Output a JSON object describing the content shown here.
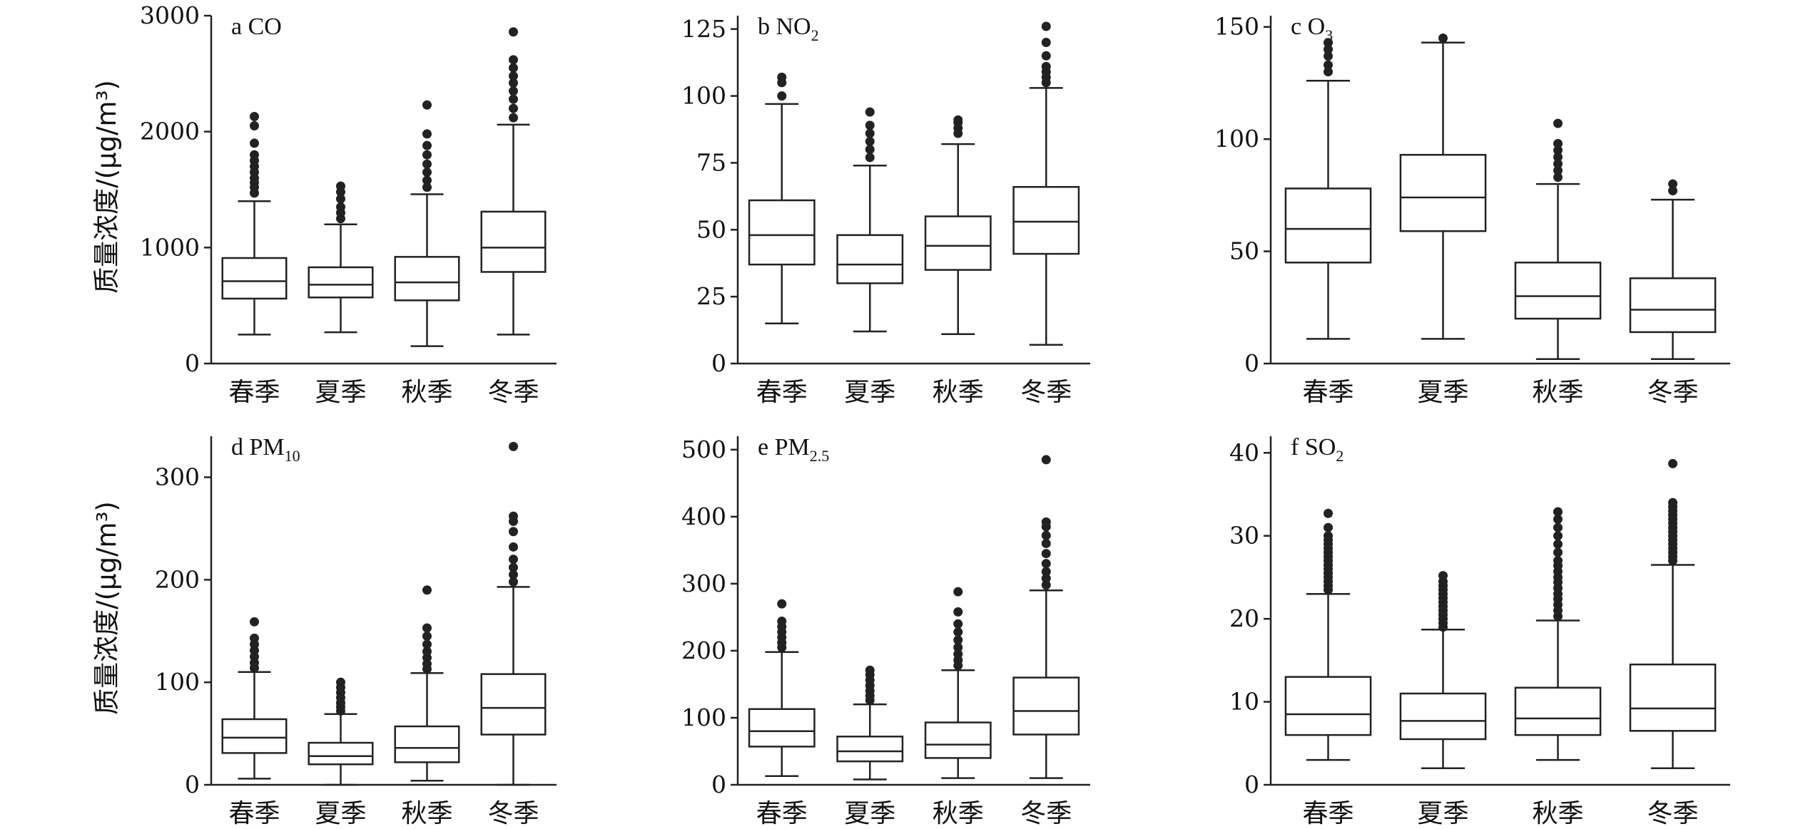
{
  "y_axis_label": "质量浓度/(μg/m³)",
  "chart_data": [
    {
      "type": "boxplot",
      "title_main": "a CO",
      "title_sub": "",
      "categories": [
        "春季",
        "夏季",
        "秋季",
        "冬季"
      ],
      "ylim": [
        0,
        3000
      ],
      "yticks": [
        0,
        1000,
        2000,
        3000
      ],
      "ytick_labels": [
        "0",
        "1000",
        "2000",
        "3000"
      ],
      "boxes": [
        {
          "whisker_low": 250,
          "q1": 560,
          "median": 710,
          "q3": 910,
          "whisker_high": 1400,
          "outliers": [
            1470,
            1520,
            1560,
            1600,
            1650,
            1700,
            1750,
            1800,
            1900,
            2050,
            2130
          ]
        },
        {
          "whisker_low": 270,
          "q1": 570,
          "median": 680,
          "q3": 830,
          "whisker_high": 1200,
          "outliers": [
            1250,
            1300,
            1350,
            1420,
            1480,
            1530
          ]
        },
        {
          "whisker_low": 150,
          "q1": 545,
          "median": 700,
          "q3": 920,
          "whisker_high": 1460,
          "outliers": [
            1520,
            1580,
            1650,
            1720,
            1800,
            1880,
            1980,
            2230
          ]
        },
        {
          "whisker_low": 250,
          "q1": 790,
          "median": 1000,
          "q3": 1310,
          "whisker_high": 2060,
          "outliers": [
            2120,
            2200,
            2280,
            2350,
            2420,
            2480,
            2550,
            2620,
            2860
          ]
        }
      ]
    },
    {
      "type": "boxplot",
      "title_main": "b NO",
      "title_sub": "2",
      "categories": [
        "春季",
        "夏季",
        "秋季",
        "冬季"
      ],
      "ylim": [
        0,
        130
      ],
      "yticks": [
        0,
        25,
        50,
        75,
        100,
        125
      ],
      "ytick_labels": [
        "0",
        "25",
        "50",
        "75",
        "100",
        "125"
      ],
      "boxes": [
        {
          "whisker_low": 15,
          "q1": 37,
          "median": 48,
          "q3": 61,
          "whisker_high": 97,
          "outliers": [
            100,
            105,
            107
          ]
        },
        {
          "whisker_low": 12,
          "q1": 30,
          "median": 37,
          "q3": 48,
          "whisker_high": 74,
          "outliers": [
            77,
            80,
            83,
            86,
            89,
            94
          ]
        },
        {
          "whisker_low": 11,
          "q1": 35,
          "median": 44,
          "q3": 55,
          "whisker_high": 82,
          "outliers": [
            86,
            88,
            90,
            91
          ]
        },
        {
          "whisker_low": 7,
          "q1": 41,
          "median": 53,
          "q3": 66,
          "whisker_high": 103,
          "outliers": [
            105,
            107,
            109,
            111,
            115,
            120,
            126
          ]
        }
      ]
    },
    {
      "type": "boxplot",
      "title_main": "c O",
      "title_sub": "3",
      "categories": [
        "春季",
        "夏季",
        "秋季",
        "冬季"
      ],
      "ylim": [
        0,
        155
      ],
      "yticks": [
        0,
        50,
        100,
        150
      ],
      "ytick_labels": [
        "0",
        "50",
        "100",
        "150"
      ],
      "boxes": [
        {
          "whisker_low": 11,
          "q1": 45,
          "median": 60,
          "q3": 78,
          "whisker_high": 126,
          "outliers": [
            130,
            133,
            137,
            140,
            143
          ]
        },
        {
          "whisker_low": 11,
          "q1": 59,
          "median": 74,
          "q3": 93,
          "whisker_high": 143,
          "outliers": [
            145
          ]
        },
        {
          "whisker_low": 2,
          "q1": 20,
          "median": 30,
          "q3": 45,
          "whisker_high": 80,
          "outliers": [
            83,
            86,
            89,
            92,
            95,
            98,
            107
          ]
        },
        {
          "whisker_low": 2,
          "q1": 14,
          "median": 24,
          "q3": 38,
          "whisker_high": 73,
          "outliers": [
            77,
            80
          ]
        }
      ]
    },
    {
      "type": "boxplot",
      "title_main": "d PM",
      "title_sub": "10",
      "categories": [
        "春季",
        "夏季",
        "秋季",
        "冬季"
      ],
      "ylim": [
        0,
        340
      ],
      "yticks": [
        0,
        100,
        200,
        300
      ],
      "ytick_labels": [
        "0",
        "100",
        "200",
        "300"
      ],
      "boxes": [
        {
          "whisker_low": 6,
          "q1": 31,
          "median": 46,
          "q3": 64,
          "whisker_high": 110,
          "outliers": [
            114,
            119,
            125,
            131,
            137,
            143,
            159
          ]
        },
        {
          "whisker_low": 0,
          "q1": 20,
          "median": 28,
          "q3": 41,
          "whisker_high": 69,
          "outliers": [
            72,
            76,
            80,
            85,
            90,
            95,
            100
          ]
        },
        {
          "whisker_low": 4,
          "q1": 22,
          "median": 36,
          "q3": 57,
          "whisker_high": 109,
          "outliers": [
            113,
            118,
            124,
            130,
            137,
            145,
            153,
            190
          ]
        },
        {
          "whisker_low": 0,
          "q1": 49,
          "median": 75,
          "q3": 108,
          "whisker_high": 193,
          "outliers": [
            198,
            205,
            212,
            220,
            232,
            247,
            257,
            262,
            330
          ]
        }
      ]
    },
    {
      "type": "boxplot",
      "title_main": "e PM",
      "title_sub": "2.5",
      "categories": [
        "春季",
        "夏季",
        "秋季",
        "冬季"
      ],
      "ylim": [
        0,
        520
      ],
      "yticks": [
        0,
        100,
        200,
        300,
        400,
        500
      ],
      "ytick_labels": [
        "0",
        "100",
        "200",
        "300",
        "400",
        "500"
      ],
      "boxes": [
        {
          "whisker_low": 13,
          "q1": 57,
          "median": 80,
          "q3": 113,
          "whisker_high": 198,
          "outliers": [
            205,
            212,
            220,
            228,
            236,
            244,
            270
          ]
        },
        {
          "whisker_low": 8,
          "q1": 35,
          "median": 50,
          "q3": 72,
          "whisker_high": 120,
          "outliers": [
            126,
            133,
            140,
            148,
            156,
            164,
            171
          ]
        },
        {
          "whisker_low": 10,
          "q1": 40,
          "median": 60,
          "q3": 93,
          "whisker_high": 171,
          "outliers": [
            178,
            186,
            195,
            205,
            216,
            228,
            240,
            258,
            288
          ]
        },
        {
          "whisker_low": 10,
          "q1": 75,
          "median": 110,
          "q3": 160,
          "whisker_high": 290,
          "outliers": [
            298,
            308,
            318,
            330,
            345,
            360,
            372,
            385,
            392,
            485
          ]
        }
      ]
    },
    {
      "type": "boxplot",
      "title_main": "f SO",
      "title_sub": "2",
      "categories": [
        "春季",
        "夏季",
        "秋季",
        "冬季"
      ],
      "ylim": [
        0,
        42
      ],
      "yticks": [
        0,
        10,
        20,
        30,
        40
      ],
      "ytick_labels": [
        "0",
        "10",
        "20",
        "30",
        "40"
      ],
      "boxes": [
        {
          "whisker_low": 3,
          "q1": 6,
          "median": 8.5,
          "q3": 13,
          "whisker_high": 23,
          "outliers": [
            23.5,
            24,
            24.5,
            25,
            25.5,
            26,
            26.5,
            27,
            27.5,
            28,
            28.5,
            29,
            29.5,
            30,
            31,
            32.7
          ]
        },
        {
          "whisker_low": 2,
          "q1": 5.5,
          "median": 7.7,
          "q3": 11,
          "whisker_high": 18.7,
          "outliers": [
            19,
            19.5,
            20,
            20.5,
            21,
            21.5,
            22,
            22.5,
            23,
            23.5,
            24,
            24.5,
            25.2
          ]
        },
        {
          "whisker_low": 3,
          "q1": 6,
          "median": 8,
          "q3": 11.7,
          "whisker_high": 19.8,
          "outliers": [
            20.3,
            21,
            21.7,
            22.4,
            23,
            23.7,
            24.4,
            25,
            25.7,
            26.4,
            27,
            28,
            29,
            30,
            31,
            32,
            32.9
          ]
        },
        {
          "whisker_low": 2,
          "q1": 6.5,
          "median": 9.2,
          "q3": 14.5,
          "whisker_high": 26.5,
          "outliers": [
            27,
            27.5,
            28,
            28.5,
            29,
            29.5,
            30,
            30.5,
            31,
            31.5,
            32,
            32.5,
            33,
            33.5,
            34,
            38.7
          ]
        }
      ]
    }
  ]
}
